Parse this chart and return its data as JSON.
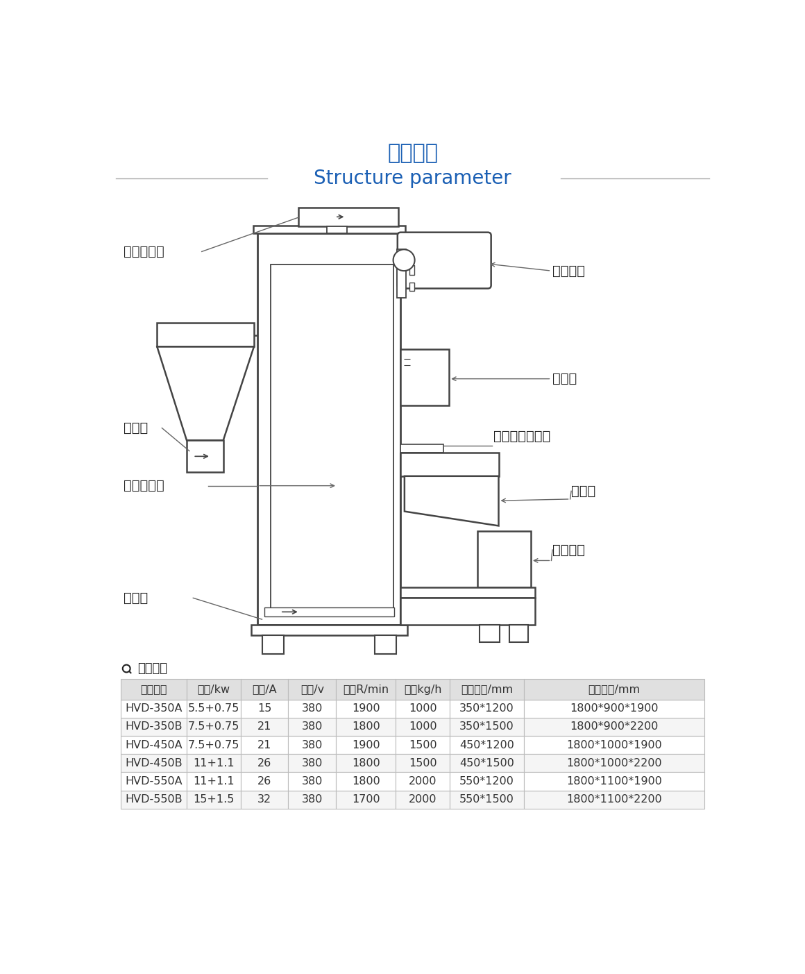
{
  "title_cn": "结构参数",
  "title_en": "Structure parameter",
  "title_color": "#1a5fb4",
  "bg_color": "#ffffff",
  "labels": {
    "belt_cover": "皮带防护罩",
    "main_motor": "主轴电机",
    "control_box": "电控箱",
    "water_inlet": "进水口（可选）",
    "feed_hopper": "进料斗",
    "feed_motor": "喂料电机",
    "clean_door": "快速清机门",
    "outlet": "出料口",
    "water_outlet": "出水口"
  },
  "table_title_icon": "Q",
  "table_title_text": "技术参数",
  "table_headers": [
    "产品型号",
    "功率/kw",
    "电流/A",
    "电压/v",
    "转速R/min",
    "产量kg/h",
    "内部尺寸/mm",
    "外形尺寸/mm"
  ],
  "table_data": [
    [
      "HVD-350A",
      "5.5+0.75",
      "15",
      "380",
      "1900",
      "1000",
      "350*1200",
      "1800*900*1900"
    ],
    [
      "HVD-350B",
      "7.5+0.75",
      "21",
      "380",
      "1800",
      "1000",
      "350*1500",
      "1800*900*2200"
    ],
    [
      "HVD-450A",
      "7.5+0.75",
      "21",
      "380",
      "1900",
      "1500",
      "450*1200",
      "1800*1000*1900"
    ],
    [
      "HVD-450B",
      "11+1.1",
      "26",
      "380",
      "1800",
      "1500",
      "450*1500",
      "1800*1000*2200"
    ],
    [
      "HVD-550A",
      "11+1.1",
      "26",
      "380",
      "1800",
      "2000",
      "550*1200",
      "1800*1100*1900"
    ],
    [
      "HVD-550B",
      "15+1.5",
      "32",
      "380",
      "1700",
      "2000",
      "550*1500",
      "1800*1100*2200"
    ]
  ],
  "line_color": "#aaaaaa",
  "table_header_bg": "#e0e0e0",
  "table_row_bg1": "#ffffff",
  "table_row_bg2": "#f5f5f5",
  "diagram_line_color": "#444444",
  "label_color": "#222222",
  "annotation_line_color": "#666666"
}
